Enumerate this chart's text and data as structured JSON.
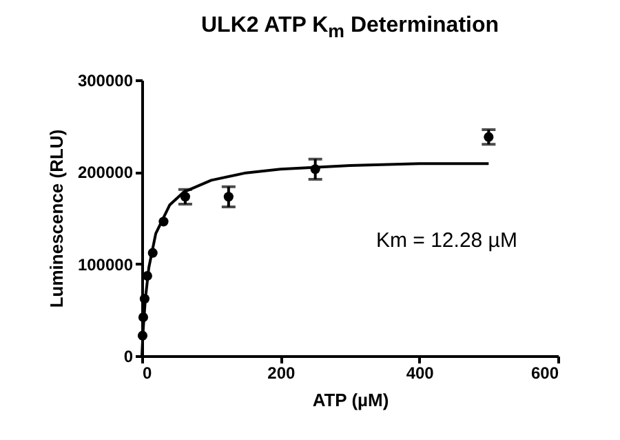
{
  "chart_data": {
    "type": "scatter",
    "title": "ULK2 ATP K$_{m}$ Determination",
    "xlabel": "ATP (µM)",
    "ylabel": "Luminescence (RLU)",
    "xlim": [
      0,
      600
    ],
    "xticks": [
      0,
      200,
      400,
      600
    ],
    "ylim": [
      0,
      300000
    ],
    "yticks": [
      0,
      100000,
      200000,
      300000
    ],
    "grid": false,
    "marker": "circle",
    "annotations": [
      "Km = 12.28 µM"
    ],
    "series": [
      {
        "color": "#000000",
        "x": [
          0.98,
          1.95,
          3.9,
          7.8,
          15.6,
          31.25,
          62.5,
          125,
          250,
          500
        ],
        "values": [
          22000,
          42000,
          62000,
          87000,
          112000,
          146000,
          173000,
          173000,
          203000,
          238000
        ],
        "errors": [
          null,
          null,
          null,
          null,
          null,
          null,
          8000,
          11000,
          11000,
          8000
        ]
      },
      {
        "type": "line",
        "color": "#000000",
        "marker": "none",
        "x": [
          0,
          1,
          2,
          5,
          10,
          20,
          40,
          60,
          100,
          150,
          200,
          300,
          400,
          500
        ],
        "values": [
          0,
          16000,
          30000,
          62000,
          96000,
          133000,
          164000,
          178000,
          191000,
          199000,
          203000,
          207000,
          209000,
          209000
        ]
      }
    ]
  }
}
